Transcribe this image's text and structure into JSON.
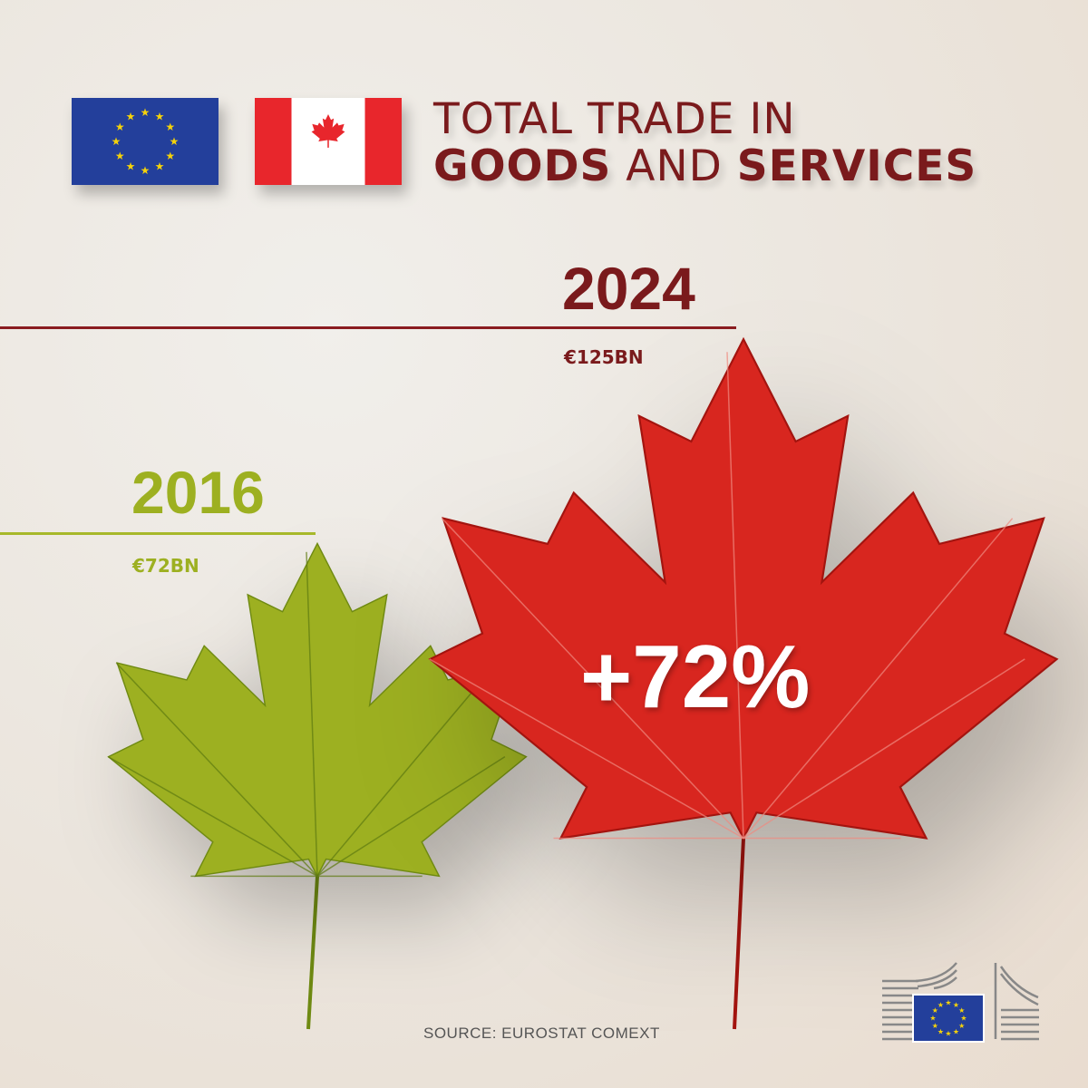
{
  "header": {
    "title_line1": "TOTAL TRADE IN",
    "title_bold1": "GOODS",
    "title_mid": " AND ",
    "title_bold2": "SERVICES"
  },
  "flags": [
    "eu-flag-icon",
    "canada-flag-icon"
  ],
  "chart_data": {
    "type": "bar",
    "title": "TOTAL TRADE IN GOODS AND SERVICES",
    "categories": [
      "2016",
      "2024"
    ],
    "values": [
      72,
      125
    ],
    "value_labels": [
      "€72BN",
      "€125BN"
    ],
    "unit": "€ billion",
    "colors": [
      "#9db021",
      "#d8261f"
    ],
    "annotation": "+72%"
  },
  "source": "SOURCE: EUROSTAT COMEXT",
  "logo": "European Commission"
}
